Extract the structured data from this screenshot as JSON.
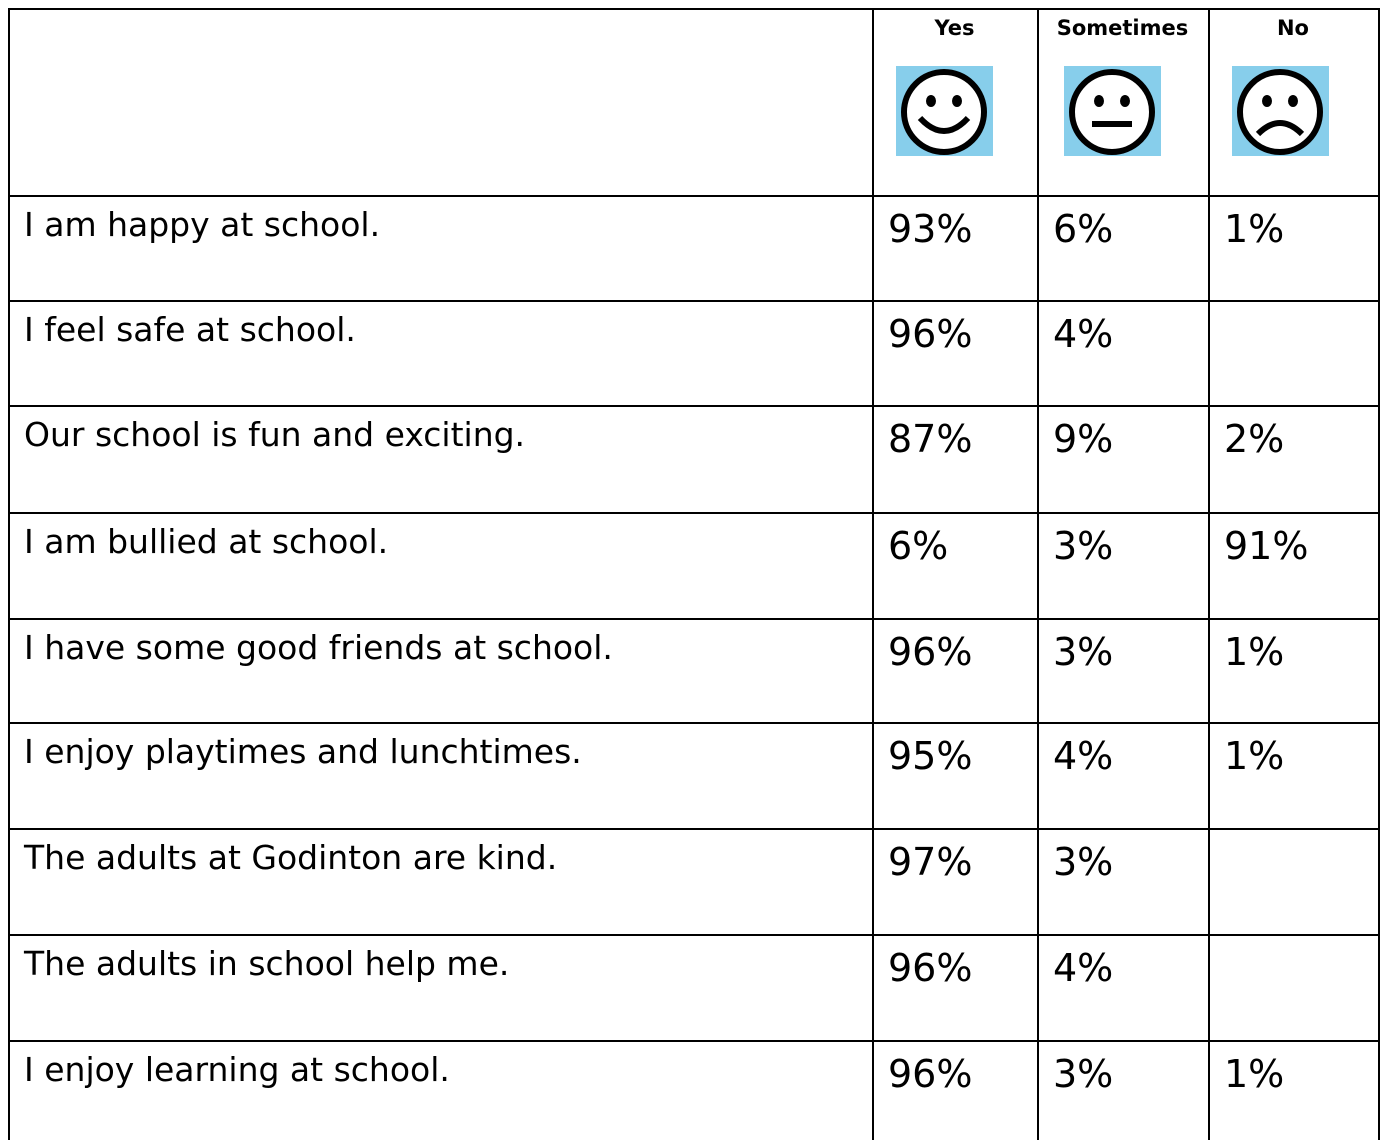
{
  "table": {
    "header": [
      "Yes",
      "Sometimes",
      "No"
    ],
    "rows": [
      [
        "I am happy at school.",
        "93%",
        "6%",
        "1%"
      ],
      [
        "I feel safe at school.",
        "96%",
        "4%",
        null
      ],
      [
        "Our school is fun and exciting.",
        "87%",
        "9%",
        "2%"
      ],
      [
        "I am bullied at school.",
        "6%",
        "3%",
        "91%"
      ],
      [
        "I have some good friends at school.",
        "96%",
        "3%",
        "1%"
      ],
      [
        "I enjoy playtimes and lunchtimes.",
        "95%",
        "4%",
        "1%"
      ],
      [
        "The adults at Godinton are kind.",
        "97%",
        "3%",
        null
      ],
      [
        "The adults in school help me.",
        "96%",
        "4%",
        null
      ],
      [
        "I enjoy learning at school.",
        "96%",
        "3%",
        "1%"
      ]
    ]
  }
}
